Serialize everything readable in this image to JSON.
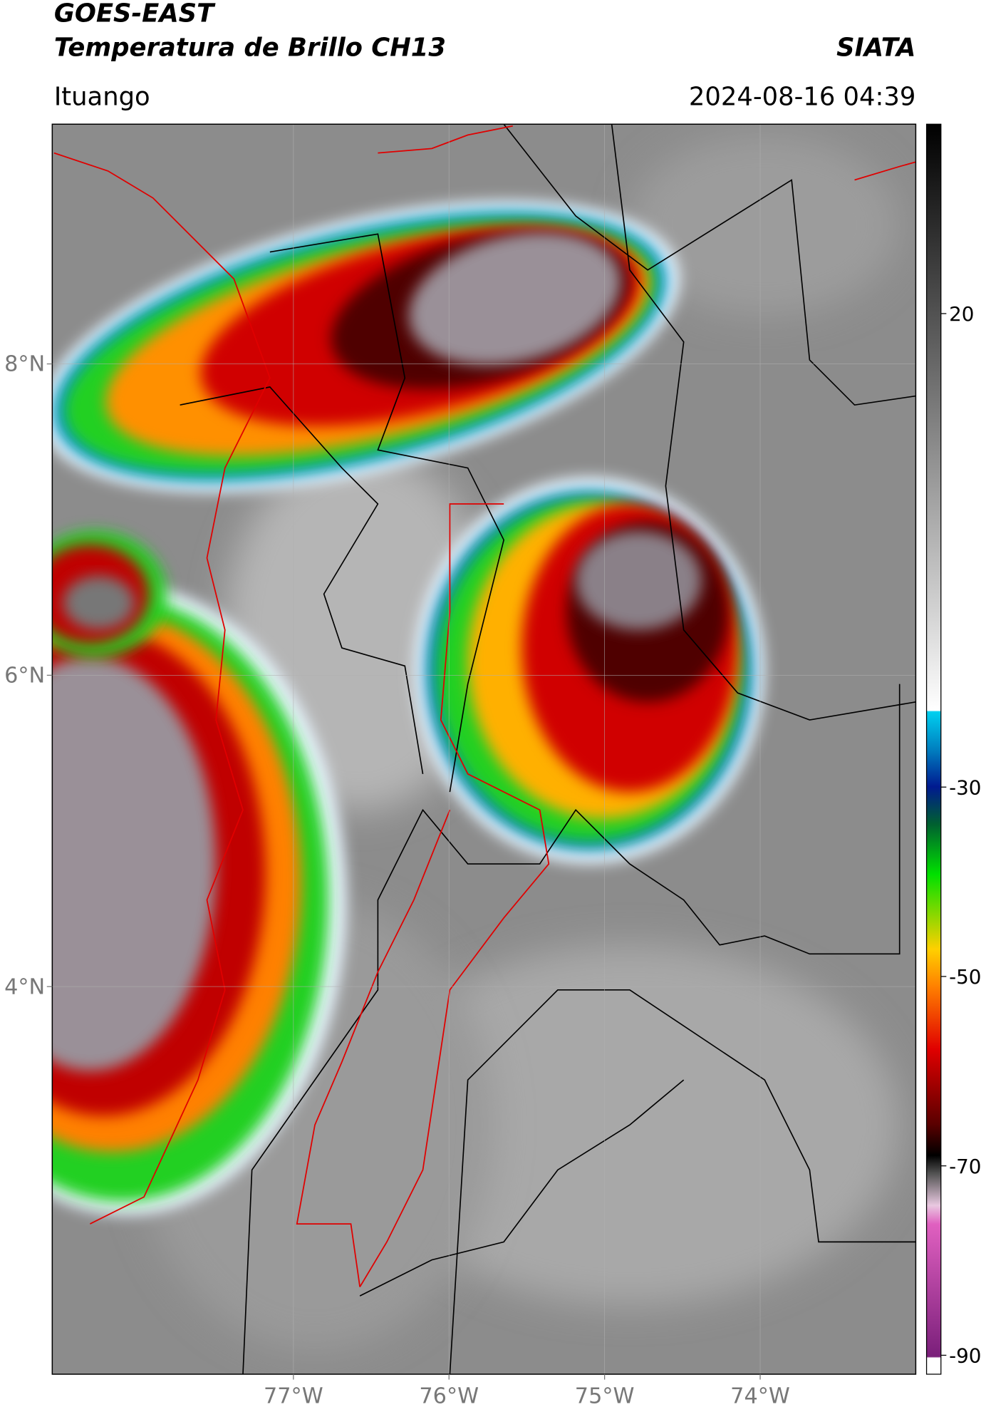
{
  "header": {
    "satellite": "GOES-EAST",
    "product": "Temperatura de Brillo CH13",
    "agency": "SIATA",
    "region": "Ituango",
    "datetime": "2024-08-16 04:39"
  },
  "map": {
    "xlim": [
      -78.55,
      -73.0
    ],
    "ylim": [
      1.51,
      9.54
    ],
    "xticks": [
      {
        "value": -77,
        "label": "77°W"
      },
      {
        "value": -76,
        "label": "76°W"
      },
      {
        "value": -75,
        "label": "75°W"
      },
      {
        "value": -74,
        "label": "74°W"
      }
    ],
    "yticks": [
      {
        "value": 8,
        "label": "8°N"
      },
      {
        "value": 6,
        "label": "6°N"
      },
      {
        "value": 4,
        "label": "4°N"
      }
    ]
  },
  "colorbar": {
    "lim": [
      -92,
      40
    ],
    "ticks": [
      20,
      -30,
      -50,
      -70,
      -90
    ]
  }
}
